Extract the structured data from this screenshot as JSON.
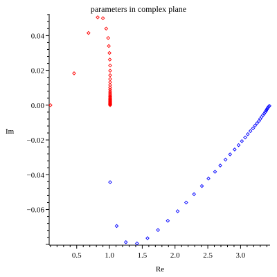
{
  "chart_data": {
    "type": "scatter",
    "title": "parameters in complex plane",
    "xlabel": "Re",
    "ylabel": "Im",
    "xlim": [
      0.08,
      3.45
    ],
    "ylim": [
      -0.0805,
      0.0525
    ],
    "xticks": [
      0.5,
      1.0,
      1.5,
      2.0,
      2.5,
      3.0
    ],
    "xtick_labels": [
      "0.5",
      "1.0",
      "1.5",
      "2.0",
      "2.5",
      "3.0"
    ],
    "yticks": [
      0.04,
      0.02,
      0.0,
      -0.02,
      -0.04,
      -0.06
    ],
    "ytick_labels": [
      "0.04",
      "0.02",
      "0.00",
      "−0.02",
      "−0.04",
      "−0.06"
    ],
    "grid": false,
    "marker": "diamond",
    "series": [
      {
        "color": "#ff0000",
        "points": [
          [
            0.1,
            0.0
          ],
          [
            0.46,
            0.0183
          ],
          [
            0.68,
            0.0415
          ],
          [
            0.82,
            0.0505
          ],
          [
            0.9,
            0.05
          ],
          [
            0.95,
            0.044
          ],
          [
            0.98,
            0.0386
          ],
          [
            0.99,
            0.034
          ],
          [
            1.0,
            0.03
          ],
          [
            1.005,
            0.0262
          ],
          [
            1.01,
            0.0228
          ],
          [
            1.01,
            0.0198
          ],
          [
            1.01,
            0.0172
          ],
          [
            1.01,
            0.015
          ],
          [
            1.01,
            0.0132
          ],
          [
            1.01,
            0.0116
          ],
          [
            1.01,
            0.0102
          ],
          [
            1.01,
            0.009
          ],
          [
            1.01,
            0.008
          ],
          [
            1.01,
            0.0071
          ],
          [
            1.01,
            0.0063
          ],
          [
            1.01,
            0.0056
          ],
          [
            1.01,
            0.0049
          ],
          [
            1.01,
            0.0043
          ],
          [
            1.01,
            0.0038
          ],
          [
            1.01,
            0.0033
          ],
          [
            1.01,
            0.0028
          ],
          [
            1.01,
            0.0024
          ],
          [
            1.01,
            0.002
          ],
          [
            1.01,
            0.0016
          ],
          [
            1.01,
            0.0012
          ],
          [
            1.01,
            0.0009
          ],
          [
            1.01,
            0.0006
          ],
          [
            1.01,
            0.0003
          ],
          [
            1.01,
            0.0
          ]
        ]
      },
      {
        "color": "#0000ff",
        "points": [
          [
            1.01,
            -0.0443
          ],
          [
            1.11,
            -0.0695
          ],
          [
            1.25,
            -0.0788
          ],
          [
            1.42,
            -0.0795
          ],
          [
            1.58,
            -0.0765
          ],
          [
            1.74,
            -0.0718
          ],
          [
            1.89,
            -0.0665
          ],
          [
            2.04,
            -0.061
          ],
          [
            2.17,
            -0.056
          ],
          [
            2.29,
            -0.0512
          ],
          [
            2.41,
            -0.0465
          ],
          [
            2.51,
            -0.0422
          ],
          [
            2.61,
            -0.0383
          ],
          [
            2.69,
            -0.0347
          ],
          [
            2.77,
            -0.0313
          ],
          [
            2.84,
            -0.0283
          ],
          [
            2.91,
            -0.0255
          ],
          [
            2.97,
            -0.023
          ],
          [
            3.02,
            -0.0207
          ],
          [
            3.07,
            -0.0186
          ],
          [
            3.11,
            -0.0167
          ],
          [
            3.15,
            -0.0149
          ],
          [
            3.19,
            -0.0133
          ],
          [
            3.22,
            -0.0118
          ],
          [
            3.25,
            -0.0104
          ],
          [
            3.28,
            -0.0091
          ],
          [
            3.3,
            -0.0079
          ],
          [
            3.32,
            -0.0068
          ],
          [
            3.34,
            -0.0058
          ],
          [
            3.36,
            -0.0049
          ],
          [
            3.375,
            -0.004
          ],
          [
            3.39,
            -0.0032
          ],
          [
            3.4,
            -0.0025
          ],
          [
            3.41,
            -0.0019
          ],
          [
            3.42,
            -0.0013
          ],
          [
            3.43,
            -0.0008
          ],
          [
            3.44,
            -0.0004
          ]
        ]
      }
    ]
  }
}
